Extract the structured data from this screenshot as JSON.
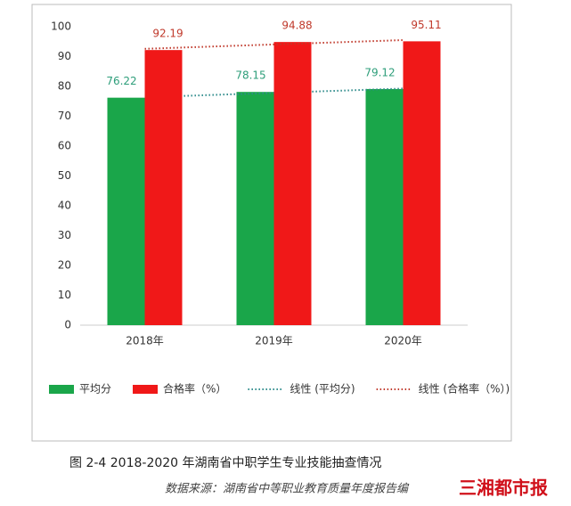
{
  "chart_data": {
    "type": "bar",
    "categories": [
      "2018年",
      "2019年",
      "2020年"
    ],
    "series": [
      {
        "name": "平均分",
        "color": "#1aa64a",
        "label_color": "#2e9e7a",
        "values": [
          76.22,
          78.15,
          79.12
        ],
        "trendline": {
          "name": "线性 (平均分)",
          "color": "#2e8b8b"
        }
      },
      {
        "name": "合格率（%）",
        "color": "#f01818",
        "label_color": "#c0392b",
        "values": [
          92.19,
          94.88,
          95.11
        ],
        "trendline": {
          "name": "线性 (合格率（%）)",
          "color": "#c0392b"
        }
      }
    ],
    "ylim": [
      0,
      100
    ],
    "yticks": [
      0,
      10,
      20,
      30,
      40,
      50,
      60,
      70,
      80,
      90,
      100
    ],
    "grid": false,
    "legend": "bottom"
  },
  "caption": "图 2-4    2018-2020 年湖南省中职学生专业技能抽查情况",
  "source": "数据来源：湖南省中等职业教育质量年度报告编",
  "watermark": "三湘都市报"
}
